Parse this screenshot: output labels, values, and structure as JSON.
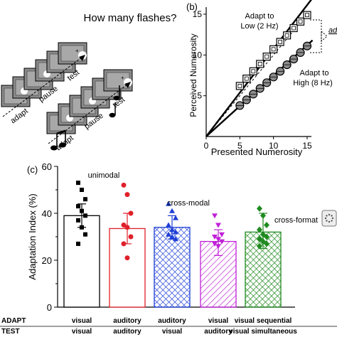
{
  "panel_a": {
    "title": "How many flashes?",
    "seq_labels": [
      "adapt",
      "pause",
      "test"
    ]
  },
  "colors": {
    "black": "#000000",
    "red": "#e0202a",
    "blue": "#1f3fd6",
    "magenta": "#c020d8",
    "green": "#1f8a1f",
    "gray": "#808080"
  },
  "chart_data": [
    {
      "panel": "(b)",
      "type": "line",
      "xlabel": "Presented Numerosity",
      "ylabel": "Perceived Numerosity",
      "xlim": [
        0,
        15
      ],
      "ylim": [
        0,
        15
      ],
      "xticks": [
        "0",
        "5",
        "10",
        "15"
      ],
      "yticks": [
        "5",
        "10",
        "15"
      ],
      "annotations": [
        "Adapt to",
        "Low (2 Hz)",
        "Adapt to",
        "High (8 Hz)",
        "ad"
      ],
      "series": [
        {
          "marker": "open-square",
          "x": [
            5,
            6,
            7,
            8,
            9,
            10,
            11,
            12,
            13,
            14,
            15
          ],
          "y": [
            6.2,
            7.1,
            8.0,
            8.9,
            9.8,
            10.7,
            11.6,
            12.4,
            13.3,
            14.1,
            14.9
          ]
        },
        {
          "marker": "filled-circle",
          "x": [
            5,
            6,
            7,
            8,
            9,
            10,
            11,
            12,
            13,
            14,
            15
          ],
          "y": [
            3.8,
            4.5,
            5.2,
            5.9,
            6.6,
            7.3,
            8.0,
            8.8,
            9.5,
            10.3,
            11.1
          ]
        }
      ]
    },
    {
      "panel": "(c)",
      "type": "bar",
      "ylabel": "Adaptation Index (%)",
      "ylim": [
        0,
        60
      ],
      "yticks": [
        "0",
        "20",
        "40",
        "60"
      ],
      "row_labels": [
        "ADAPT",
        "TEST"
      ],
      "categories": [
        {
          "adapt": "visual",
          "test": "visual",
          "value": 39,
          "color": "#000000",
          "err": [
            34,
            44
          ],
          "points": [
            53,
            50,
            46,
            43,
            41,
            39,
            37,
            34,
            31,
            27
          ]
        },
        {
          "adapt": "auditory",
          "test": "auditory",
          "value": 33.5,
          "color": "#e0202a",
          "err": [
            27,
            40
          ],
          "points": [
            52,
            48,
            40,
            35,
            34,
            30,
            27,
            21
          ]
        },
        {
          "adapt": "auditory",
          "test": "visual",
          "value": 34,
          "color": "#1f3fd6",
          "err": [
            29,
            39
          ],
          "points": [
            44,
            41,
            38,
            35,
            33,
            32,
            31,
            30,
            29
          ]
        },
        {
          "adapt": "visual",
          "test": "auditory",
          "value": 28,
          "color": "#c020d8",
          "err": [
            22,
            33
          ],
          "points": [
            39,
            35,
            31,
            30,
            29,
            28,
            27,
            26
          ]
        },
        {
          "adapt": "visual sequential",
          "test": "visual simultaneous",
          "value": 32,
          "color": "#1f8a1f",
          "err": [
            25,
            40
          ],
          "points": [
            42,
            39,
            35,
            33,
            31,
            30,
            29,
            28,
            27,
            26
          ]
        }
      ],
      "annotations": [
        "unimodal",
        "cross-modal",
        "cross-format"
      ]
    }
  ],
  "panel_c_label": "(c)",
  "panel_b_label": "(b)"
}
